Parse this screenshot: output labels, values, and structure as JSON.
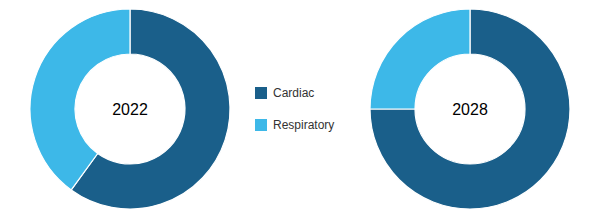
{
  "chart_data": [
    {
      "type": "pie",
      "title": "2022",
      "categories": [
        "Cardiac",
        "Respiratory"
      ],
      "values": [
        60,
        40
      ],
      "colors": [
        "#1a5f8a",
        "#3db8e8"
      ],
      "legend": "right"
    },
    {
      "type": "pie",
      "title": "2028",
      "categories": [
        "Cardiac",
        "Respiratory"
      ],
      "values": [
        75,
        25
      ],
      "colors": [
        "#1a5f8a",
        "#3db8e8"
      ]
    }
  ]
}
